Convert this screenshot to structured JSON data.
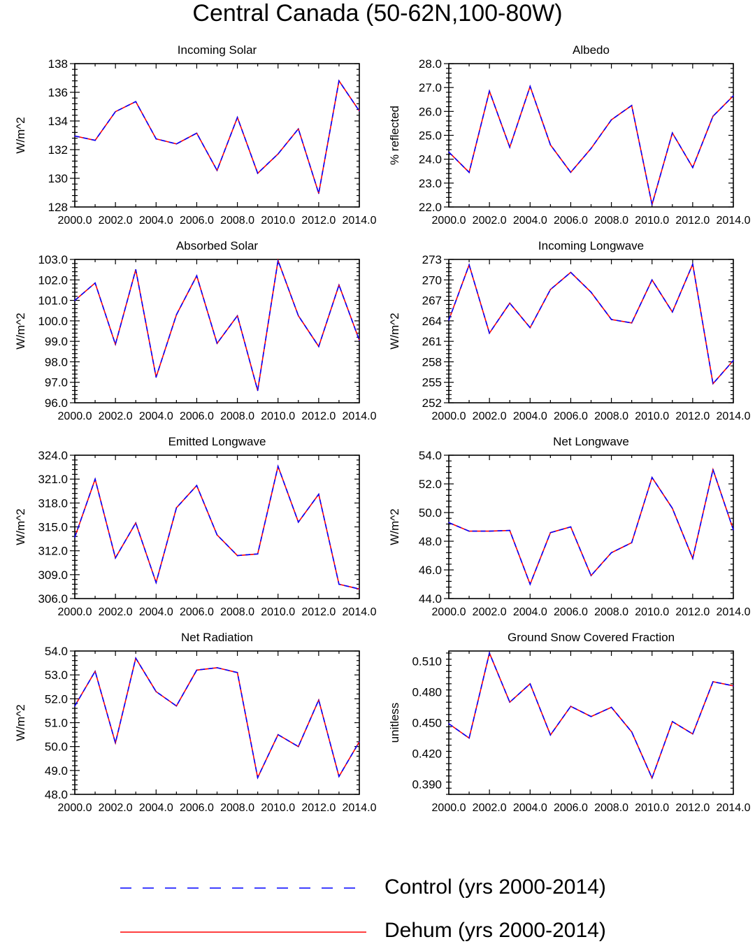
{
  "title": "Central Canada (50-62N,100-80W)",
  "legend": [
    {
      "label": "Control (yrs 2000-2014)",
      "color": "#0000ff",
      "style": "dashed"
    },
    {
      "label": "Dehum (yrs 2000-2014)",
      "color": "#ff0000",
      "style": "solid"
    }
  ],
  "chart_data": [
    {
      "type": "line",
      "title": "Incoming Solar",
      "ylabel": "W/m^2",
      "xlim": [
        2000,
        2014
      ],
      "ylim": [
        128,
        138
      ],
      "xticks": [
        2000,
        2002,
        2004,
        2006,
        2008,
        2010,
        2012,
        2014
      ],
      "xtick_labels": [
        "2000.0",
        "2002.0",
        "2004.0",
        "2006.0",
        "2008.0",
        "2010.0",
        "2012.0",
        "2014.0"
      ],
      "yticks": [
        128,
        130,
        132,
        134,
        136,
        138
      ],
      "ytick_labels": [
        "128",
        "130",
        "132",
        "134",
        "136",
        "138"
      ],
      "x": [
        2000,
        2001,
        2002,
        2003,
        2004,
        2005,
        2006,
        2007,
        2008,
        2009,
        2010,
        2011,
        2012,
        2013,
        2014
      ],
      "series": [
        {
          "name": "Control (yrs 2000-2014)",
          "values": [
            132.95,
            132.65,
            134.65,
            135.35,
            132.75,
            132.4,
            133.15,
            130.55,
            134.25,
            130.35,
            131.7,
            133.45,
            128.95,
            136.8,
            134.7
          ]
        },
        {
          "name": "Dehum (yrs 2000-2014)",
          "values": [
            132.95,
            132.65,
            134.65,
            135.35,
            132.75,
            132.4,
            133.15,
            130.55,
            134.25,
            130.35,
            131.7,
            133.45,
            128.95,
            136.8,
            134.7
          ]
        }
      ]
    },
    {
      "type": "line",
      "title": "Albedo",
      "ylabel": "% reflected",
      "xlim": [
        2000,
        2014
      ],
      "ylim": [
        22,
        28
      ],
      "xticks": [
        2000,
        2002,
        2004,
        2006,
        2008,
        2010,
        2012,
        2014
      ],
      "xtick_labels": [
        "2000.0",
        "2002.0",
        "2004.0",
        "2006.0",
        "2008.0",
        "2010.0",
        "2012.0",
        "2014.0"
      ],
      "yticks": [
        22,
        23,
        24,
        25,
        26,
        27,
        28
      ],
      "ytick_labels": [
        "22.0",
        "23.0",
        "24.0",
        "25.0",
        "26.0",
        "27.0",
        "28.0"
      ],
      "x": [
        2000,
        2001,
        2002,
        2003,
        2004,
        2005,
        2006,
        2007,
        2008,
        2009,
        2010,
        2011,
        2012,
        2013,
        2014
      ],
      "series": [
        {
          "name": "Control (yrs 2000-2014)",
          "values": [
            24.3,
            23.45,
            26.85,
            24.5,
            27.05,
            24.6,
            23.45,
            24.45,
            25.65,
            26.25,
            22.1,
            25.1,
            23.65,
            25.8,
            26.65
          ]
        },
        {
          "name": "Dehum (yrs 2000-2014)",
          "values": [
            24.3,
            23.45,
            26.85,
            24.5,
            27.05,
            24.6,
            23.45,
            24.45,
            25.65,
            26.25,
            22.1,
            25.1,
            23.65,
            25.8,
            26.65
          ]
        }
      ]
    },
    {
      "type": "line",
      "title": "Absorbed Solar",
      "ylabel": "W/m^2",
      "xlim": [
        2000,
        2014
      ],
      "ylim": [
        96,
        103
      ],
      "xticks": [
        2000,
        2002,
        2004,
        2006,
        2008,
        2010,
        2012,
        2014
      ],
      "xtick_labels": [
        "2000.0",
        "2002.0",
        "2004.0",
        "2006.0",
        "2008.0",
        "2010.0",
        "2012.0",
        "2014.0"
      ],
      "yticks": [
        96,
        97,
        98,
        99,
        100,
        101,
        102,
        103
      ],
      "ytick_labels": [
        "96.0",
        "97.0",
        "98.0",
        "99.0",
        "100.0",
        "101.0",
        "102.0",
        "103.0"
      ],
      "x": [
        2000,
        2001,
        2002,
        2003,
        2004,
        2005,
        2006,
        2007,
        2008,
        2009,
        2010,
        2011,
        2012,
        2013,
        2014
      ],
      "series": [
        {
          "name": "Control (yrs 2000-2014)",
          "values": [
            101.0,
            101.85,
            98.85,
            102.5,
            97.25,
            100.3,
            102.2,
            98.9,
            100.25,
            96.6,
            102.95,
            100.25,
            98.75,
            101.75,
            99.05
          ]
        },
        {
          "name": "Dehum (yrs 2000-2014)",
          "values": [
            101.0,
            101.85,
            98.85,
            102.5,
            97.25,
            100.3,
            102.2,
            98.9,
            100.25,
            96.6,
            102.95,
            100.25,
            98.75,
            101.75,
            99.05
          ]
        }
      ]
    },
    {
      "type": "line",
      "title": "Incoming Longwave",
      "ylabel": "W/m^2",
      "xlim": [
        2000,
        2014
      ],
      "ylim": [
        252,
        273
      ],
      "xticks": [
        2000,
        2002,
        2004,
        2006,
        2008,
        2010,
        2012,
        2014
      ],
      "xtick_labels": [
        "2000.0",
        "2002.0",
        "2004.0",
        "2006.0",
        "2008.0",
        "2010.0",
        "2012.0",
        "2014.0"
      ],
      "yticks": [
        252,
        255,
        258,
        261,
        264,
        267,
        270,
        273
      ],
      "ytick_labels": [
        "252",
        "255",
        "258",
        "261",
        "264",
        "267",
        "270",
        "273"
      ],
      "x": [
        2000,
        2001,
        2002,
        2003,
        2004,
        2005,
        2006,
        2007,
        2008,
        2009,
        2010,
        2011,
        2012,
        2013,
        2014
      ],
      "series": [
        {
          "name": "Control (yrs 2000-2014)",
          "values": [
            264.1,
            272.2,
            262.2,
            266.6,
            263.0,
            268.6,
            271.1,
            268.2,
            264.2,
            263.7,
            270.0,
            265.3,
            272.3,
            254.8,
            258.2
          ]
        },
        {
          "name": "Dehum (yrs 2000-2014)",
          "values": [
            264.1,
            272.2,
            262.2,
            266.6,
            263.0,
            268.6,
            271.1,
            268.2,
            264.2,
            263.7,
            270.0,
            265.3,
            272.3,
            254.8,
            258.2
          ]
        }
      ]
    },
    {
      "type": "line",
      "title": "Emitted Longwave",
      "ylabel": "W/m^2",
      "xlim": [
        2000,
        2014
      ],
      "ylim": [
        306,
        324
      ],
      "xticks": [
        2000,
        2002,
        2004,
        2006,
        2008,
        2010,
        2012,
        2014
      ],
      "xtick_labels": [
        "2000.0",
        "2002.0",
        "2004.0",
        "2006.0",
        "2008.0",
        "2010.0",
        "2012.0",
        "2014.0"
      ],
      "yticks": [
        306,
        309,
        312,
        315,
        318,
        321,
        324
      ],
      "ytick_labels": [
        "306.0",
        "309.0",
        "312.0",
        "315.0",
        "318.0",
        "321.0",
        "324.0"
      ],
      "x": [
        2000,
        2001,
        2002,
        2003,
        2004,
        2005,
        2006,
        2007,
        2008,
        2009,
        2010,
        2011,
        2012,
        2013,
        2014
      ],
      "series": [
        {
          "name": "Control (yrs 2000-2014)",
          "values": [
            313.7,
            321.0,
            311.1,
            315.5,
            308.0,
            317.4,
            320.2,
            314.0,
            311.4,
            311.6,
            322.6,
            315.6,
            319.1,
            307.8,
            307.2
          ]
        },
        {
          "name": "Dehum (yrs 2000-2014)",
          "values": [
            313.7,
            321.0,
            311.1,
            315.5,
            308.0,
            317.4,
            320.2,
            314.0,
            311.4,
            311.6,
            322.6,
            315.6,
            319.1,
            307.8,
            307.2
          ]
        }
      ]
    },
    {
      "type": "line",
      "title": "Net Longwave",
      "ylabel": "W/m^2",
      "xlim": [
        2000,
        2014
      ],
      "ylim": [
        44,
        54
      ],
      "xticks": [
        2000,
        2002,
        2004,
        2006,
        2008,
        2010,
        2012,
        2014
      ],
      "xtick_labels": [
        "2000.0",
        "2002.0",
        "2004.0",
        "2006.0",
        "2008.0",
        "2010.0",
        "2012.0",
        "2014.0"
      ],
      "yticks": [
        44,
        46,
        48,
        50,
        52,
        54
      ],
      "ytick_labels": [
        "44.0",
        "46.0",
        "48.0",
        "50.0",
        "52.0",
        "54.0"
      ],
      "x": [
        2000,
        2001,
        2002,
        2003,
        2004,
        2005,
        2006,
        2007,
        2008,
        2009,
        2010,
        2011,
        2012,
        2013,
        2014
      ],
      "series": [
        {
          "name": "Control (yrs 2000-2014)",
          "values": [
            49.3,
            48.7,
            48.7,
            48.75,
            45.0,
            48.6,
            49.0,
            45.6,
            47.2,
            47.9,
            52.45,
            50.3,
            46.8,
            53.0,
            48.8
          ]
        },
        {
          "name": "Dehum (yrs 2000-2014)",
          "values": [
            49.3,
            48.7,
            48.7,
            48.75,
            45.0,
            48.6,
            49.0,
            45.6,
            47.2,
            47.9,
            52.45,
            50.3,
            46.8,
            53.0,
            48.8
          ]
        }
      ]
    },
    {
      "type": "line",
      "title": "Net Radiation",
      "ylabel": "W/m^2",
      "xlim": [
        2000,
        2014
      ],
      "ylim": [
        48,
        54
      ],
      "xticks": [
        2000,
        2002,
        2004,
        2006,
        2008,
        2010,
        2012,
        2014
      ],
      "xtick_labels": [
        "2000.0",
        "2002.0",
        "2004.0",
        "2006.0",
        "2008.0",
        "2010.0",
        "2012.0",
        "2014.0"
      ],
      "yticks": [
        48,
        49,
        50,
        51,
        52,
        53,
        54
      ],
      "ytick_labels": [
        "48.0",
        "49.0",
        "50.0",
        "51.0",
        "52.0",
        "53.0",
        "54.0"
      ],
      "x": [
        2000,
        2001,
        2002,
        2003,
        2004,
        2005,
        2006,
        2007,
        2008,
        2009,
        2010,
        2011,
        2012,
        2013,
        2014
      ],
      "series": [
        {
          "name": "Control (yrs 2000-2014)",
          "values": [
            51.7,
            53.15,
            50.15,
            53.7,
            52.3,
            51.7,
            53.2,
            53.3,
            53.1,
            48.7,
            50.5,
            50.0,
            51.95,
            48.75,
            50.2
          ]
        },
        {
          "name": "Dehum (yrs 2000-2014)",
          "values": [
            51.7,
            53.15,
            50.15,
            53.7,
            52.3,
            51.7,
            53.2,
            53.3,
            53.1,
            48.7,
            50.5,
            50.0,
            51.95,
            48.75,
            50.2
          ]
        }
      ]
    },
    {
      "type": "line",
      "title": "Ground Snow Covered Fraction",
      "ylabel": "unitless",
      "xlim": [
        2000,
        2014
      ],
      "ylim": [
        0.38,
        0.52
      ],
      "xticks": [
        2000,
        2002,
        2004,
        2006,
        2008,
        2010,
        2012,
        2014
      ],
      "xtick_labels": [
        "2000.0",
        "2002.0",
        "2004.0",
        "2006.0",
        "2008.0",
        "2010.0",
        "2012.0",
        "2014.0"
      ],
      "yticks": [
        0.39,
        0.42,
        0.45,
        0.48,
        0.51
      ],
      "ytick_labels": [
        "0.390",
        "0.420",
        "0.450",
        "0.480",
        "0.510"
      ],
      "x": [
        2000,
        2001,
        2002,
        2003,
        2004,
        2005,
        2006,
        2007,
        2008,
        2009,
        2010,
        2011,
        2012,
        2013,
        2014
      ],
      "series": [
        {
          "name": "Control (yrs 2000-2014)",
          "values": [
            0.449,
            0.435,
            0.518,
            0.47,
            0.488,
            0.438,
            0.466,
            0.456,
            0.465,
            0.441,
            0.396,
            0.451,
            0.439,
            0.49,
            0.486
          ]
        },
        {
          "name": "Dehum (yrs 2000-2014)",
          "values": [
            0.449,
            0.435,
            0.518,
            0.47,
            0.488,
            0.438,
            0.466,
            0.456,
            0.465,
            0.441,
            0.396,
            0.451,
            0.439,
            0.49,
            0.486
          ]
        }
      ]
    }
  ]
}
